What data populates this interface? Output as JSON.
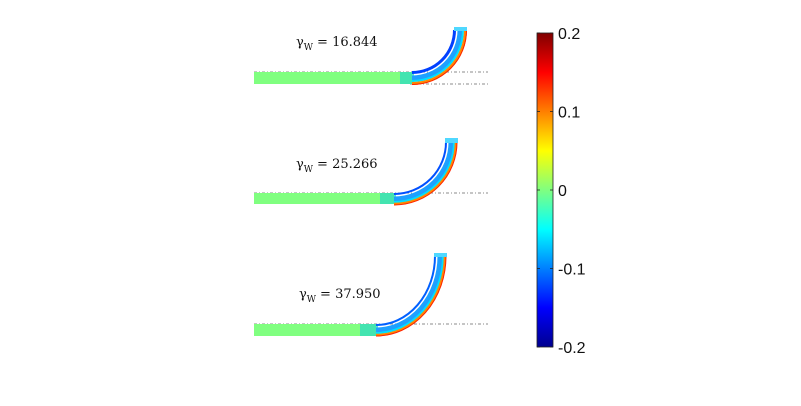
{
  "figure": {
    "colormap": "jet",
    "panels": [
      {
        "symbol": "γ",
        "subscript": "W",
        "value_text": "= 16.844"
      },
      {
        "symbol": "γ",
        "subscript": "W",
        "value_text": "= 25.266"
      },
      {
        "symbol": "γ",
        "subscript": "W",
        "value_text": "= 37.950"
      }
    ],
    "colorbar": {
      "range": [
        -0.2,
        0.2
      ],
      "ticks": [
        {
          "value": 0.2,
          "label": "0.2"
        },
        {
          "value": 0.1,
          "label": "0.1"
        },
        {
          "value": 0,
          "label": "0"
        },
        {
          "value": -0.1,
          "label": "-0.1"
        },
        {
          "value": -0.2,
          "label": "-0.2"
        }
      ]
    }
  }
}
